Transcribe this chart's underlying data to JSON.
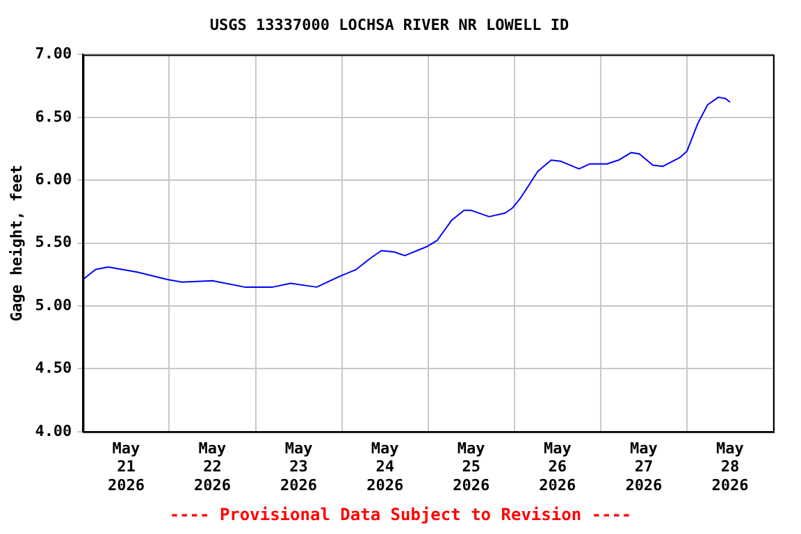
{
  "chart_data": {
    "type": "line",
    "title": "USGS 13337000 LOCHSA RIVER NR LOWELL ID",
    "ylabel": "Gage height, feet",
    "annotations": [
      "---- Provisional Data Subject to Revision ----"
    ],
    "x": [
      "2026-05-21T00:00",
      "2026-05-21T03:30",
      "2026-05-21T07:00",
      "2026-05-21T15:00",
      "2026-05-21T23:30",
      "2026-05-22T03:30",
      "2026-05-22T12:00",
      "2026-05-22T21:00",
      "2026-05-23T04:45",
      "2026-05-23T09:45",
      "2026-05-23T17:00",
      "2026-05-23T23:00",
      "2026-05-24T04:00",
      "2026-05-24T08:00",
      "2026-05-24T11:00",
      "2026-05-24T14:30",
      "2026-05-24T17:30",
      "2026-05-24T23:30",
      "2026-05-25T02:30",
      "2026-05-25T06:30",
      "2026-05-25T10:00",
      "2026-05-25T12:00",
      "2026-05-25T17:00",
      "2026-05-25T21:30",
      "2026-05-25T23:30",
      "2026-05-26T01:45",
      "2026-05-26T06:30",
      "2026-05-26T10:15",
      "2026-05-26T13:00",
      "2026-05-26T18:00",
      "2026-05-26T21:00",
      "2026-05-27T01:45",
      "2026-05-27T05:00",
      "2026-05-27T08:30",
      "2026-05-27T10:45",
      "2026-05-27T14:30",
      "2026-05-27T17:15",
      "2026-05-27T22:00",
      "2026-05-28T00:00",
      "2026-05-28T03:00",
      "2026-05-28T05:45",
      "2026-05-28T08:45",
      "2026-05-28T10:45",
      "2026-05-28T12:00"
    ],
    "series": [
      {
        "color": "#0000ff",
        "values": [
          5.21,
          5.29,
          5.31,
          5.27,
          5.21,
          5.19,
          5.2,
          5.15,
          5.15,
          5.18,
          5.15,
          5.23,
          5.29,
          5.38,
          5.44,
          5.43,
          5.4,
          5.47,
          5.52,
          5.68,
          5.76,
          5.76,
          5.71,
          5.74,
          5.78,
          5.86,
          6.07,
          6.16,
          6.15,
          6.09,
          6.13,
          6.13,
          6.16,
          6.22,
          6.21,
          6.12,
          6.11,
          6.18,
          6.23,
          6.45,
          6.6,
          6.66,
          6.65,
          6.62
        ]
      }
    ],
    "xlim": [
      "2026-05-21T00:00",
      "2026-05-29T00:00"
    ],
    "xticks": [
      {
        "value": "2026-05-21T00:00",
        "label": null
      },
      {
        "value": "2026-05-21T12:00",
        "label": "May\n21\n2026"
      },
      {
        "value": "2026-05-22T00:00",
        "label": null
      },
      {
        "value": "2026-05-22T12:00",
        "label": "May\n22\n2026"
      },
      {
        "value": "2026-05-23T00:00",
        "label": null
      },
      {
        "value": "2026-05-23T12:00",
        "label": "May\n23\n2026"
      },
      {
        "value": "2026-05-24T00:00",
        "label": null
      },
      {
        "value": "2026-05-24T12:00",
        "label": "May\n24\n2026"
      },
      {
        "value": "2026-05-25T00:00",
        "label": null
      },
      {
        "value": "2026-05-25T12:00",
        "label": "May\n25\n2026"
      },
      {
        "value": "2026-05-26T00:00",
        "label": null
      },
      {
        "value": "2026-05-26T12:00",
        "label": "May\n26\n2026"
      },
      {
        "value": "2026-05-27T00:00",
        "label": null
      },
      {
        "value": "2026-05-27T12:00",
        "label": "May\n27\n2026"
      },
      {
        "value": "2026-05-28T00:00",
        "label": null
      },
      {
        "value": "2026-05-28T12:00",
        "label": "May\n28\n2026"
      },
      {
        "value": "2026-05-29T00:00",
        "label": null
      }
    ],
    "ylim": [
      4,
      7
    ],
    "yticks": [
      {
        "value": 4,
        "label": "4.00"
      },
      {
        "value": 4.5,
        "label": "4.50"
      },
      {
        "value": 5,
        "label": "5.00"
      },
      {
        "value": 5.5,
        "label": "5.50"
      },
      {
        "value": 6,
        "label": "6.00"
      },
      {
        "value": 6.5,
        "label": "6.50"
      },
      {
        "value": 7,
        "label": "7.00"
      }
    ],
    "grid": true,
    "legend": false,
    "marker": "none",
    "line_style": "solid"
  }
}
